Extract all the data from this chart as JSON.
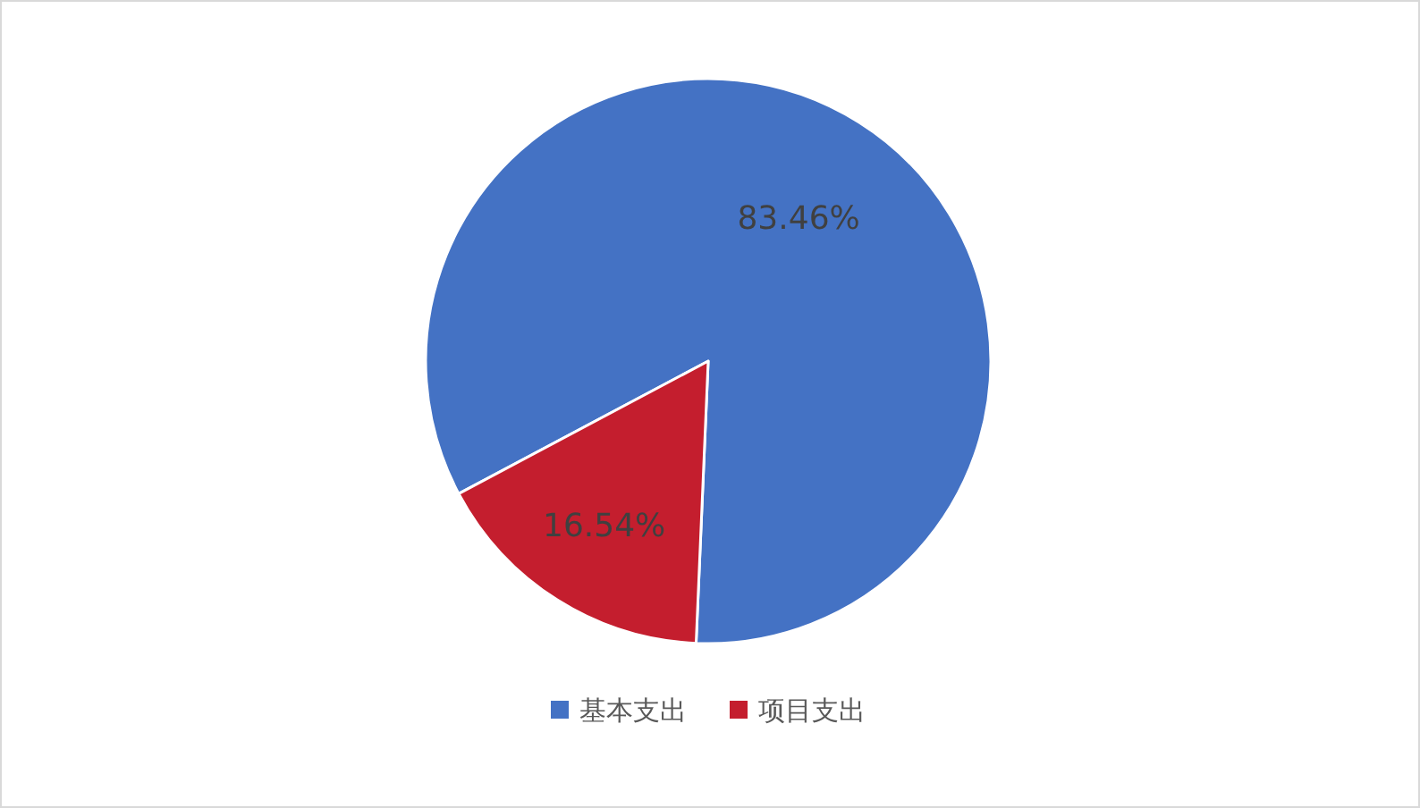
{
  "chart_data": {
    "type": "pie",
    "categories": [
      "基本支出",
      "项目支出"
    ],
    "values": [
      83.46,
      16.54
    ],
    "colors": [
      "#4472c4",
      "#c41e2e"
    ],
    "value_labels": [
      "83.46%",
      "16.54%"
    ],
    "legend": "bottom"
  }
}
